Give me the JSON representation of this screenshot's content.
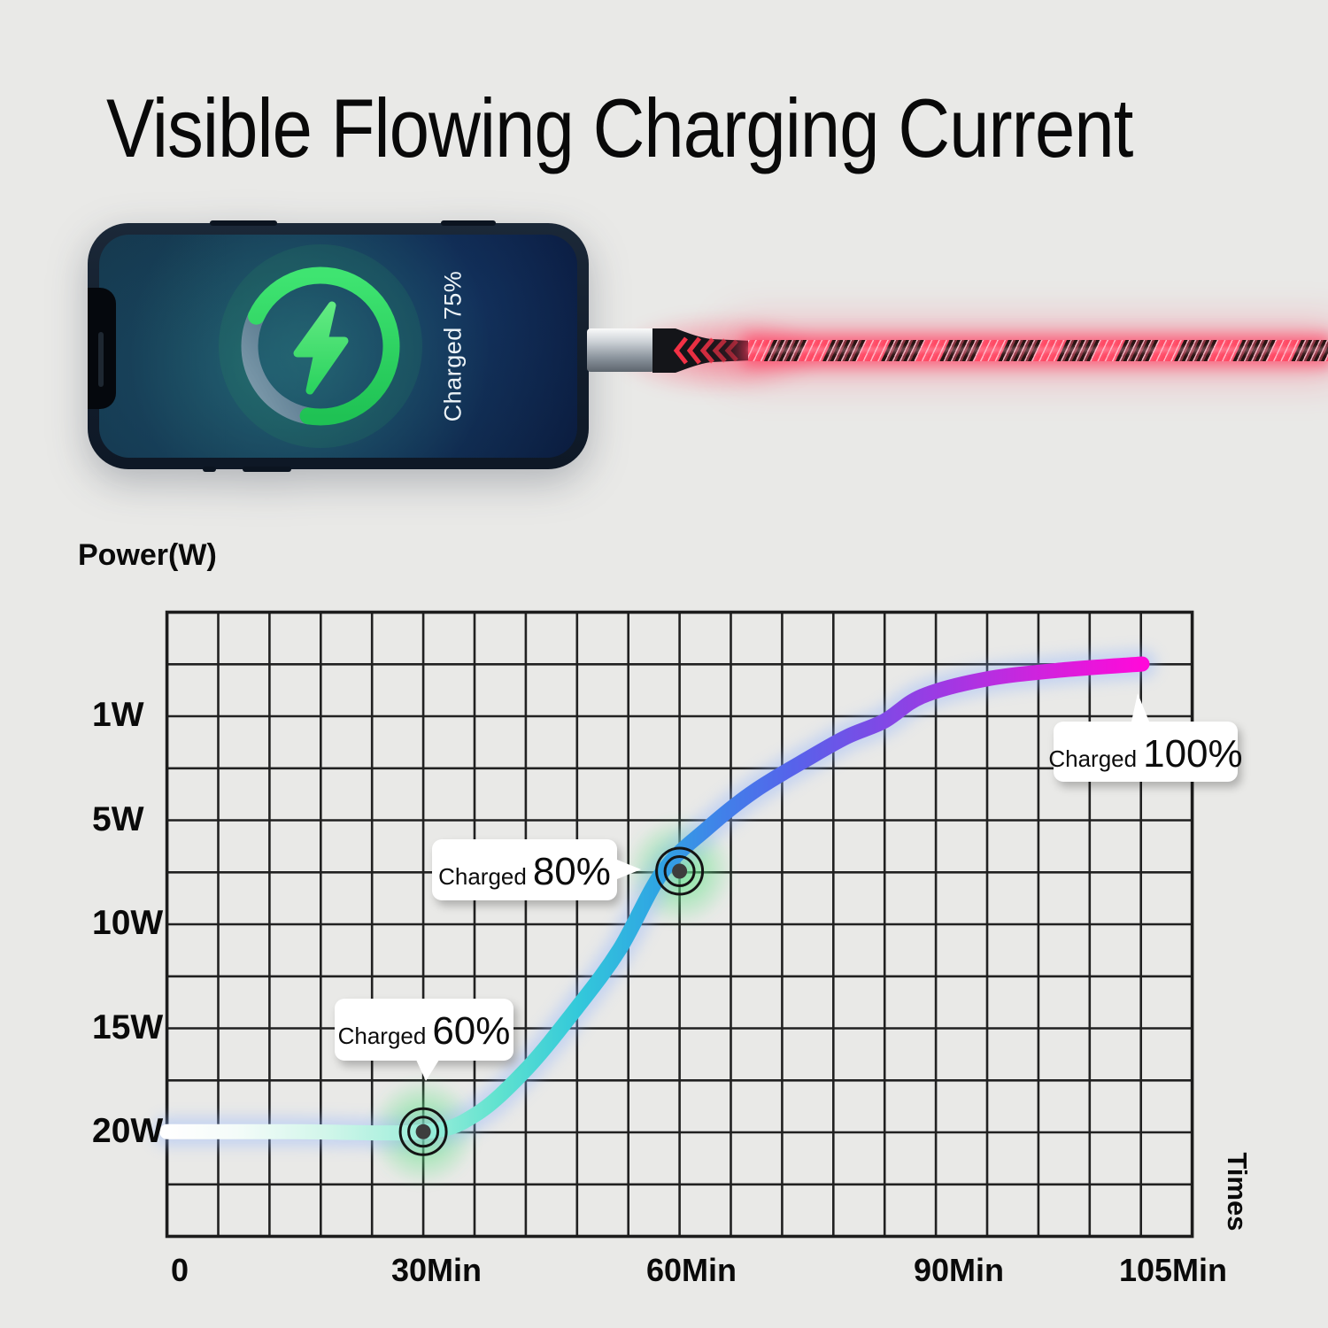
{
  "title": "Visible Flowing Charging Current",
  "phone": {
    "charged_text": "Charged 75%",
    "ring_percent": 75,
    "ring_color": "#2ed15f",
    "bolt_icon": "lightning-bolt",
    "screen_theme": "dark-blue-teal-gradient"
  },
  "cable": {
    "type": "led-flowing-charging-cable",
    "glow_color": "#ff3355",
    "connector_color": "#9aa2aa"
  },
  "chart": {
    "y_axis_label": "Power(W)",
    "x_axis_label": "Times",
    "y_ticks": [
      "1W",
      "5W",
      "10W",
      "15W",
      "20W"
    ],
    "x_ticks": [
      "0",
      "30Min",
      "60Min",
      "90Min",
      "105Min"
    ],
    "callouts": [
      {
        "prefix": "Charged",
        "value": "60%"
      },
      {
        "prefix": "Charged",
        "value": "80%"
      },
      {
        "prefix": "Charged",
        "value": "100%"
      }
    ]
  },
  "chart_data": {
    "type": "line",
    "title": "Charging power over time with charge milestones",
    "xlabel": "Times",
    "ylabel": "Power(W)",
    "x_ticks_minutes": [
      0,
      30,
      60,
      90,
      105
    ],
    "y_ticks_watts": [
      1,
      5,
      10,
      15,
      20
    ],
    "y_axis_inverted_display": true,
    "grid": {
      "columns": 20,
      "rows": 12,
      "line_color": "#212121"
    },
    "series": [
      {
        "name": "charging-power",
        "points_min_watts": [
          [
            0,
            20
          ],
          [
            15,
            20
          ],
          [
            30,
            20
          ],
          [
            36,
            19.2
          ],
          [
            42,
            17
          ],
          [
            48,
            14
          ],
          [
            53,
            11.2
          ],
          [
            58,
            7.5
          ],
          [
            63,
            5.4
          ],
          [
            68,
            3.9
          ],
          [
            74,
            2.6
          ],
          [
            78,
            1.8
          ],
          [
            82,
            1.2
          ],
          [
            86,
            0.85
          ],
          [
            92,
            0.72
          ],
          [
            98,
            0.65
          ],
          [
            105,
            0.6
          ]
        ],
        "gradient": [
          "#ffffff",
          "#9deeda",
          "#33c9da",
          "#2fa6e3",
          "#5663ea",
          "#a138e3",
          "#ff0ad9"
        ]
      }
    ],
    "milestones": [
      {
        "label": "Charged 60%",
        "min": 30,
        "watts": 20,
        "marker": true
      },
      {
        "label": "Charged 80%",
        "min": 60,
        "watts": 7.47,
        "marker": true
      },
      {
        "label": "Charged 100%",
        "min": 105,
        "watts": 0.6,
        "marker": false
      }
    ]
  },
  "colors": {
    "background": "#e9e9e7",
    "accent_green": "#2ed15f",
    "marker_glow_green": "#58e57e",
    "curve_glow_blue": "#8fb3ff"
  }
}
